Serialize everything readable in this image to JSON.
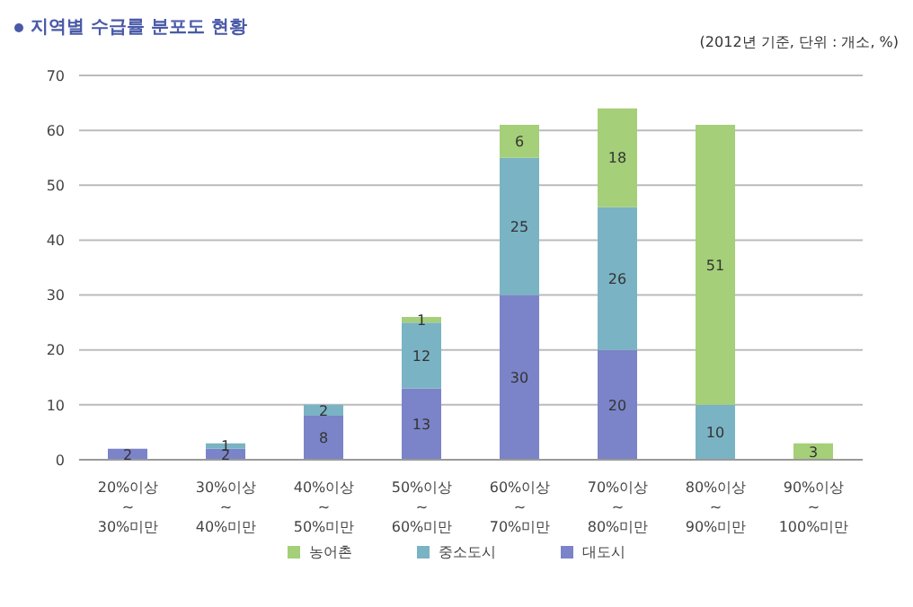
{
  "chart_data": {
    "type": "bar",
    "title": "지역별 수급률 분포도 현황",
    "subtitle": "(2012년 기준, 단위 : 개소, %)",
    "categories": [
      "20%이상\n~\n30%미만",
      "30%이상\n~\n40%미만",
      "40%이상\n~\n50%미만",
      "50%이상\n~\n60%미만",
      "60%이상\n~\n70%미만",
      "70%이상\n~\n80%미만",
      "80%이상\n~\n90%미만",
      "90%이상\n~\n100%미만"
    ],
    "series": [
      {
        "name": "대도시",
        "color": "#7b84c8",
        "values": [
          2,
          2,
          8,
          13,
          30,
          20,
          null,
          null
        ]
      },
      {
        "name": "중소도시",
        "color": "#7ab3c4",
        "values": [
          null,
          1,
          2,
          12,
          25,
          26,
          10,
          null
        ]
      },
      {
        "name": "농어촌",
        "color": "#a5cf78",
        "values": [
          null,
          null,
          null,
          1,
          6,
          18,
          51,
          3
        ]
      }
    ],
    "stacked": true,
    "data_labels": true,
    "ylim": [
      0,
      70
    ],
    "yticks": [
      0,
      10,
      20,
      30,
      40,
      50,
      60,
      70
    ],
    "grid": "y",
    "legend": "bottom"
  }
}
